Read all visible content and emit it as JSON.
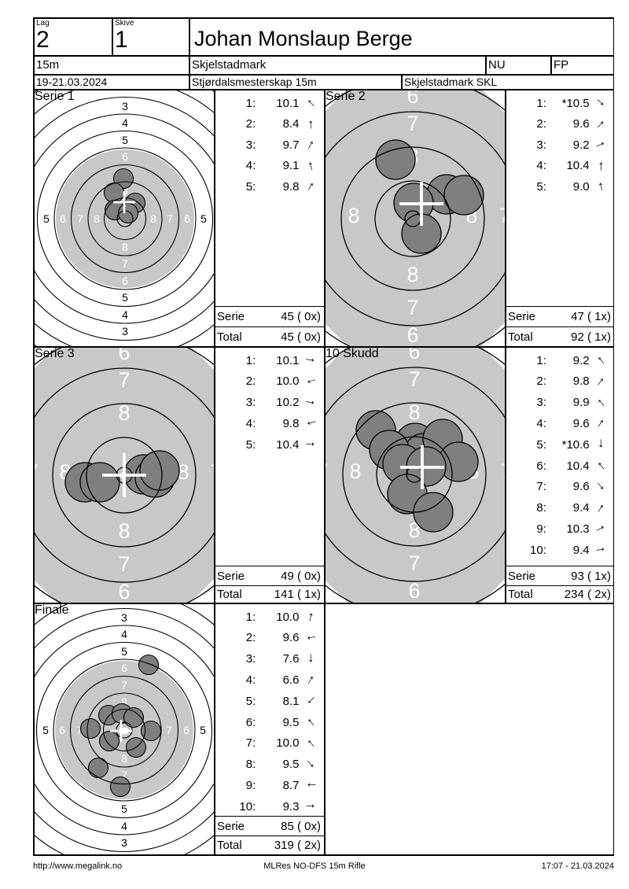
{
  "header": {
    "lag_label": "Lag",
    "lag_value": "2",
    "skive_label": "Skive",
    "skive_value": "1",
    "shooter_name": "Johan Monslaup Berge",
    "distance": "15m",
    "club": "Skjelstadmark",
    "class_short": "NU",
    "weapon_class": "FP",
    "date_range": "19-21.03.2024",
    "event_name": "Stjørdalsmesterskap 15m",
    "organizer": "Skjelstadmark SKL"
  },
  "rings": {
    "full_v": [
      "3",
      "4",
      "5",
      "6",
      "7",
      "8"
    ],
    "full_h": [
      "5",
      "6",
      "7",
      "8"
    ],
    "zoom_v": [
      "6",
      "7",
      "8"
    ],
    "zoom_h": [
      "8",
      "7"
    ]
  },
  "colors": {
    "gray_disc": "#c8c8c8",
    "shot_fill": "#7f7f7f",
    "line": "#000000",
    "cross": "#ffffff"
  },
  "panels": [
    {
      "title": "Serie 1",
      "serie_label": "Serie",
      "serie_value": "45 ( 0x)",
      "total_label": "Total",
      "total_value": "45 ( 0x)",
      "shots": [
        {
          "n": "1:",
          "v": "10.1",
          "dir": -42
        },
        {
          "n": "2:",
          "v": "8.4",
          "dir": 0
        },
        {
          "n": "3:",
          "v": "9.7",
          "dir": 30
        },
        {
          "n": "4:",
          "v": "9.1",
          "dir": -15
        },
        {
          "n": "5:",
          "v": "9.8",
          "dir": 33
        }
      ],
      "target": {
        "shots": [
          [
            115,
            114
          ],
          [
            103,
            132
          ],
          [
            130,
            145
          ],
          [
            104,
            154
          ],
          [
            121,
            158
          ]
        ],
        "cross": [
          116,
          144
        ],
        "dot": [
          117,
          165
        ]
      }
    },
    {
      "title": "Serie 2",
      "serie_label": "Serie",
      "serie_value": "47 ( 1x)",
      "total_label": "Total",
      "total_value": "92 ( 1x)",
      "shots": [
        {
          "n": "1:",
          "v": "*10.5",
          "dir": 135
        },
        {
          "n": "2:",
          "v": "9.6",
          "dir": 42
        },
        {
          "n": "3:",
          "v": "9.2",
          "dir": 65
        },
        {
          "n": "4:",
          "v": "10.4",
          "dir": 0
        },
        {
          "n": "5:",
          "v": "9.0",
          "dir": -12
        }
      ],
      "target": {
        "shots": [
          [
            91,
            90
          ],
          [
            156,
            134
          ],
          [
            178,
            135
          ],
          [
            114,
            145
          ],
          [
            124,
            184
          ]
        ],
        "cross": [
          124,
          146
        ],
        "dot": [
          113,
          165
        ]
      }
    },
    {
      "title": "Serie 3",
      "serie_label": "Serie",
      "serie_value": "49 ( 0x)",
      "total_label": "Total",
      "total_value": "141 ( 1x)",
      "shots": [
        {
          "n": "1:",
          "v": "10.1",
          "dir": 97
        },
        {
          "n": "2:",
          "v": "10.0",
          "dir": -108
        },
        {
          "n": "3:",
          "v": "10.2",
          "dir": 100
        },
        {
          "n": "4:",
          "v": "9.8",
          "dir": -105
        },
        {
          "n": "5:",
          "v": "10.4",
          "dir": 90
        }
      ],
      "target": {
        "shots": [
          [
            66,
            173
          ],
          [
            85,
            173
          ],
          [
            141,
            163
          ],
          [
            155,
            167
          ],
          [
            161,
            158
          ]
        ],
        "cross": [
          116,
          164
        ],
        "dot": [
          116,
          164
        ]
      }
    },
    {
      "title": "10 Skudd",
      "serie_label": "Serie",
      "serie_value": "93 ( 1x)",
      "total_label": "Total",
      "total_value": "234 ( 2x)",
      "shots": [
        {
          "n": "1:",
          "v": "9.2",
          "dir": -40
        },
        {
          "n": "2:",
          "v": "9.8",
          "dir": 38
        },
        {
          "n": "3:",
          "v": "9.9",
          "dir": -42
        },
        {
          "n": "4:",
          "v": "9.6",
          "dir": 35
        },
        {
          "n": "5:",
          "v": "*10.6",
          "dir": 180
        },
        {
          "n": "6:",
          "v": "10.4",
          "dir": -40
        },
        {
          "n": "7:",
          "v": "9.6",
          "dir": 140
        },
        {
          "n": "8:",
          "v": "9.4",
          "dir": 35
        },
        {
          "n": "9:",
          "v": "10.3",
          "dir": 62
        },
        {
          "n": "10:",
          "v": "9.4",
          "dir": 80
        }
      ],
      "target": {
        "shots": [
          [
            116,
            123
          ],
          [
            127,
            136
          ],
          [
            66,
            107
          ],
          [
            83,
            132
          ],
          [
            151,
            118
          ],
          [
            171,
            147
          ],
          [
            100,
            150
          ],
          [
            130,
            153
          ],
          [
            106,
            188
          ],
          [
            139,
            211
          ]
        ],
        "cross": [
          125,
          154
        ],
        "dot": [
          113,
          162
        ]
      }
    },
    {
      "title": "Finale",
      "serie_label": "Serie",
      "serie_value": "85 ( 0x)",
      "total_label": "Total",
      "total_value": "319 ( 2x)",
      "shots": [
        {
          "n": "1:",
          "v": "10.0",
          "dir": 12
        },
        {
          "n": "2:",
          "v": "9.6",
          "dir": -102
        },
        {
          "n": "3:",
          "v": "7.6",
          "dir": 180
        },
        {
          "n": "4:",
          "v": "6.6",
          "dir": 30
        },
        {
          "n": "5:",
          "v": "8.1",
          "dir": -135
        },
        {
          "n": "6:",
          "v": "9.5",
          "dir": -40
        },
        {
          "n": "7:",
          "v": "10.0",
          "dir": -42
        },
        {
          "n": "8:",
          "v": "9.5",
          "dir": 138
        },
        {
          "n": "9:",
          "v": "8.7",
          "dir": -90
        },
        {
          "n": "10:",
          "v": "9.3",
          "dir": 90
        }
      ],
      "target": {
        "shots": [
          [
            147,
            79
          ],
          [
            96,
            143
          ],
          [
            113,
            141
          ],
          [
            128,
            146
          ],
          [
            73,
            160
          ],
          [
            150,
            163
          ],
          [
            97,
            176
          ],
          [
            131,
            184
          ],
          [
            83,
            210
          ],
          [
            111,
            234
          ]
        ],
        "cross": [
          112,
          163
        ],
        "dot": [
          117,
          163
        ]
      }
    }
  ],
  "footer": {
    "url": "http://www.megalink.no",
    "program": "MLRes NO-DFS 15m Rifle",
    "timestamp": "17:07 - 21.03.2024"
  }
}
